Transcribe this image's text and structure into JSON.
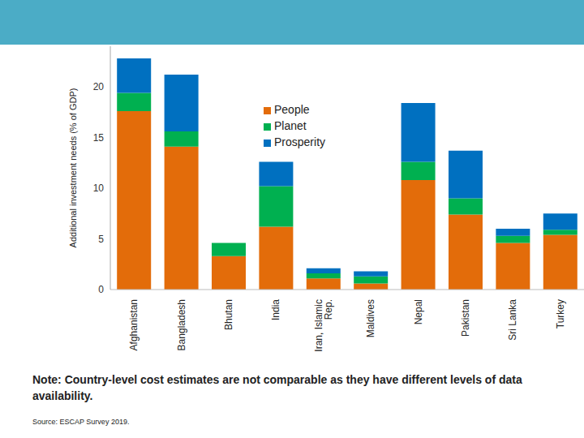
{
  "chart_data": {
    "type": "bar",
    "stacked": true,
    "y_label": "Additional investment needs (% of GDP)",
    "categories": [
      "Afghanistan",
      "Bangladesh",
      "Bhutan",
      "India",
      "Iran, Islamic Rep.",
      "Maldives",
      "Nepal",
      "Pakistan",
      "Sri Lanka",
      "Turkey"
    ],
    "series": [
      {
        "name": "People",
        "color": "#e36c0a",
        "values": [
          17.6,
          14.1,
          3.3,
          6.2,
          1.1,
          0.6,
          10.8,
          7.4,
          4.6,
          5.4
        ]
      },
      {
        "name": "Planet",
        "color": "#00b050",
        "values": [
          1.8,
          1.5,
          1.3,
          4.0,
          0.5,
          0.7,
          1.8,
          1.6,
          0.7,
          0.5
        ]
      },
      {
        "name": "Prosperity",
        "color": "#0070c0",
        "values": [
          3.4,
          5.6,
          0,
          2.4,
          0.5,
          0.5,
          5.8,
          4.7,
          0.7,
          1.6
        ]
      }
    ],
    "ylim": [
      0,
      24
    ],
    "yticks": [
      0,
      5,
      10,
      15,
      20
    ],
    "legend": "top",
    "annotations": [
      "Note: Country-level cost estimates are not comparable as they have different levels of data availability.",
      "Source: ESCAP Survey 2019."
    ]
  }
}
